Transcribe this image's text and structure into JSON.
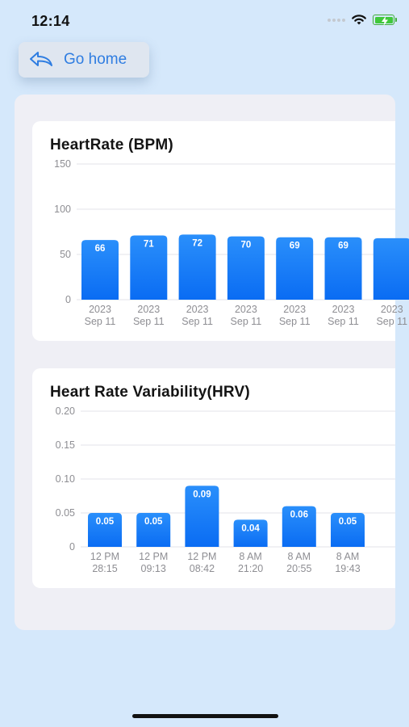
{
  "status_bar": {
    "time": "12:14"
  },
  "nav": {
    "go_home_label": "Go home"
  },
  "chart_data": [
    {
      "type": "bar",
      "title": "HeartRate (BPM)",
      "categories": [
        [
          "2023",
          "Sep 11"
        ],
        [
          "2023",
          "Sep 11"
        ],
        [
          "2023",
          "Sep 11"
        ],
        [
          "2023",
          "Sep 11"
        ],
        [
          "2023",
          "Sep 11"
        ],
        [
          "2023",
          "Sep 11"
        ],
        [
          "2023",
          "Sep 11"
        ]
      ],
      "values": [
        66,
        71,
        72,
        70,
        69,
        69,
        68
      ],
      "data_labels": [
        "66",
        "71",
        "72",
        "70",
        "69",
        "69",
        ""
      ],
      "yticks": [
        0,
        50,
        100,
        150
      ],
      "ytick_labels": [
        "0",
        "50",
        "100",
        "150"
      ],
      "ylim": [
        0,
        150
      ],
      "grid": true,
      "colors": {
        "bar_top": "#2a8ffb",
        "bar_bottom": "#0a6cf3"
      }
    },
    {
      "type": "bar",
      "title": "Heart Rate Variability(HRV)",
      "categories": [
        [
          "12 PM",
          "28:15"
        ],
        [
          "12 PM",
          "09:13"
        ],
        [
          "12 PM",
          "08:42"
        ],
        [
          "8 AM",
          "21:20"
        ],
        [
          "8 AM",
          "20:55"
        ],
        [
          "8 AM",
          "19:43"
        ]
      ],
      "values": [
        0.05,
        0.05,
        0.09,
        0.04,
        0.06,
        0.05
      ],
      "data_labels": [
        "0.05",
        "0.05",
        "0.09",
        "0.04",
        "0.06",
        "0.05"
      ],
      "yticks": [
        0,
        0.05,
        0.1,
        0.15,
        0.2
      ],
      "ytick_labels": [
        "0",
        "0.05",
        "0.10",
        "0.15",
        "0.20"
      ],
      "ylim": [
        0,
        0.2
      ],
      "grid": true,
      "colors": {
        "bar_top": "#2a8ffb",
        "bar_bottom": "#0a6cf3"
      }
    }
  ]
}
